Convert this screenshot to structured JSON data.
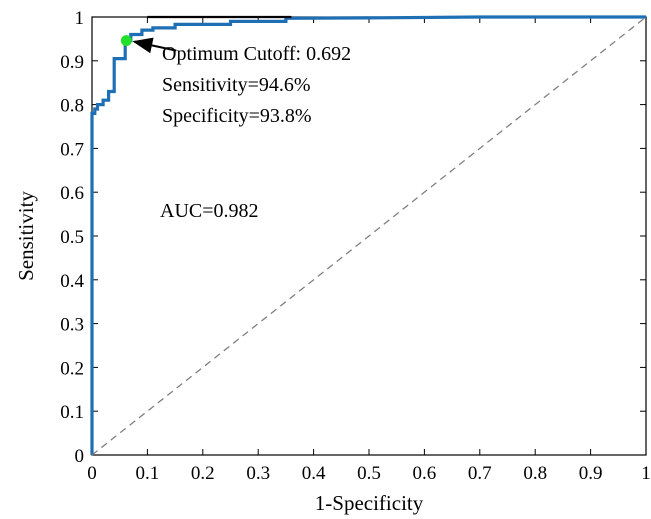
{
  "chart_data": {
    "type": "line",
    "title": "",
    "xlabel": "1-Specificity",
    "ylabel": "Sensitivity",
    "xlim": [
      0,
      1
    ],
    "ylim": [
      0,
      1
    ],
    "x_ticks": [
      "0",
      "0.1",
      "0.2",
      "0.3",
      "0.4",
      "0.5",
      "0.6",
      "0.7",
      "0.8",
      "0.9",
      "1"
    ],
    "y_ticks": [
      "0",
      "0.1",
      "0.2",
      "0.3",
      "0.4",
      "0.5",
      "0.6",
      "0.7",
      "0.8",
      "0.9",
      "1"
    ],
    "grid": false,
    "legend": "none",
    "series": [
      {
        "role": "roc-curve",
        "color": "#1f6fb5",
        "style": "solid",
        "x": [
          0,
          0,
          0.005,
          0.005,
          0.01,
          0.01,
          0.02,
          0.02,
          0.03,
          0.03,
          0.04,
          0.04,
          0.06,
          0.06,
          0.07,
          0.07,
          0.09,
          0.09,
          0.11,
          0.11,
          0.15,
          0.15,
          0.25,
          0.25,
          0.35,
          0.35,
          0.5,
          0.7,
          1.0
        ],
        "y": [
          0,
          0.78,
          0.78,
          0.79,
          0.79,
          0.8,
          0.8,
          0.81,
          0.81,
          0.83,
          0.83,
          0.905,
          0.905,
          0.946,
          0.946,
          0.96,
          0.96,
          0.97,
          0.97,
          0.975,
          0.975,
          0.983,
          0.983,
          0.99,
          0.99,
          0.997,
          0.998,
          1.0,
          1.0
        ]
      },
      {
        "role": "reference-diagonal",
        "color": "#808080",
        "style": "dashed",
        "x": [
          0,
          1
        ],
        "y": [
          0,
          1
        ]
      },
      {
        "role": "top-edge-segment",
        "color": "#000000",
        "style": "solid",
        "x": [
          0.1,
          0.36
        ],
        "y": [
          1,
          1
        ]
      }
    ],
    "optimum_point": {
      "x": 0.062,
      "y": 0.946,
      "color": "#22e02a"
    },
    "annotations": {
      "cutoff": "Optimum Cutoff: 0.692",
      "sensitivity": "Sensitivity=94.6%",
      "specificity": "Specificity=93.8%",
      "auc": "AUC=0.982"
    }
  }
}
